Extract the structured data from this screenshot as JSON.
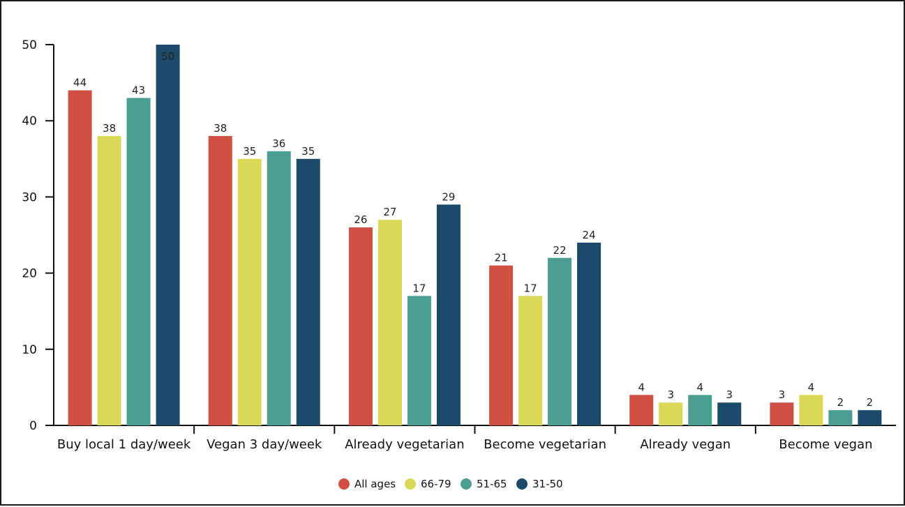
{
  "chart_data": {
    "type": "bar",
    "categories": [
      "Buy local 1 day/week",
      "Vegan 3 day/week",
      "Already vegetarian",
      "Become vegetarian",
      "Already vegan",
      "Become vegan"
    ],
    "series": [
      {
        "name": "All ages",
        "color": "#d14f43",
        "values": [
          44,
          38,
          26,
          21,
          4,
          3
        ]
      },
      {
        "name": "66-79",
        "color": "#d9d957",
        "values": [
          38,
          35,
          27,
          17,
          3,
          4
        ]
      },
      {
        "name": "51-65",
        "color": "#4a9f92",
        "values": [
          43,
          36,
          17,
          22,
          4,
          2
        ]
      },
      {
        "name": "31-50",
        "color": "#1b4a6b",
        "values": [
          50,
          35,
          29,
          24,
          3,
          2
        ]
      }
    ],
    "ylim": [
      0,
      50
    ],
    "yticks": [
      0,
      10,
      20,
      30,
      40,
      50
    ],
    "grid": false,
    "legend_position": "bottom-center"
  }
}
